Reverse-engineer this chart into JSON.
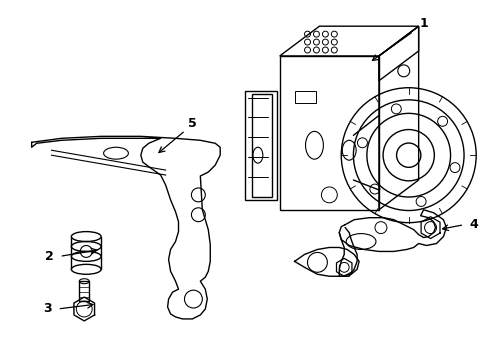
{
  "background_color": "#ffffff",
  "line_color": "#000000",
  "line_width": 1.0,
  "figure_width": 4.89,
  "figure_height": 3.6,
  "dpi": 100
}
